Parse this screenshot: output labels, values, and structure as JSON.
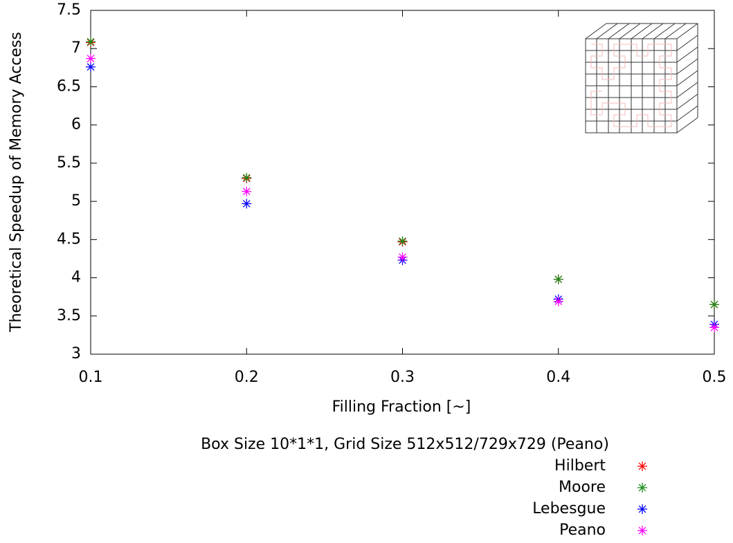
{
  "chart_data": {
    "type": "scatter",
    "x_label": "Filling Fraction [~]",
    "y_label": "Theoretical Speedup of Memory Access",
    "legend_title": "Box Size 10*1*1, Grid Size 512x512/729x729 (Peano)",
    "x": [
      0.1,
      0.2,
      0.3,
      0.4,
      0.5
    ],
    "series": [
      {
        "name": "Hilbert",
        "color": "#ff0000",
        "values": [
          7.08,
          5.3,
          4.47,
          3.98,
          3.65
        ]
      },
      {
        "name": "Moore",
        "color": "#1a8c1a",
        "values": [
          7.09,
          5.31,
          4.48,
          3.98,
          3.65
        ]
      },
      {
        "name": "Lebesgue",
        "color": "#0000ff",
        "values": [
          6.76,
          4.97,
          4.23,
          3.72,
          3.39
        ]
      },
      {
        "name": "Peano",
        "color": "#ff00ff",
        "values": [
          6.87,
          5.13,
          4.27,
          3.69,
          3.35
        ]
      }
    ],
    "xlim": [
      0.1,
      0.5
    ],
    "xticks": [
      0.1,
      0.2,
      0.3,
      0.4,
      0.5
    ],
    "ylim": [
      3,
      7.5
    ],
    "yticks": [
      3,
      3.5,
      4,
      4.5,
      5,
      5.5,
      6,
      6.5,
      7,
      7.5
    ]
  }
}
